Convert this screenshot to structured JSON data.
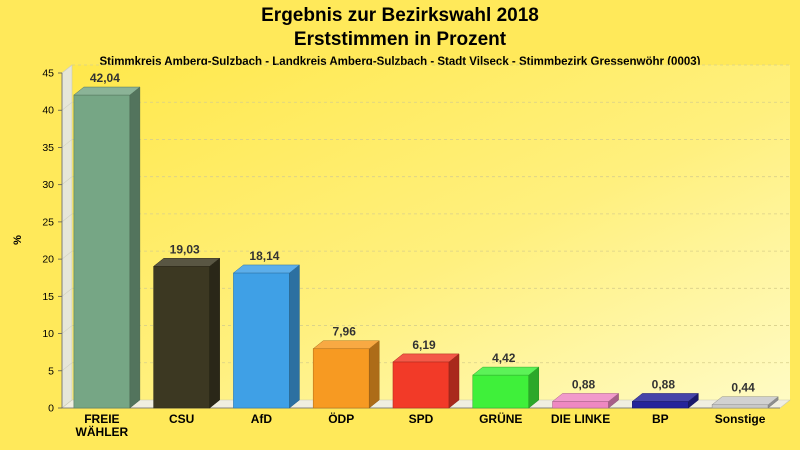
{
  "chart_data": {
    "type": "bar",
    "title": "Ergebnis zur Bezirkswahl 2018",
    "title_line2": "Erststimmen in Prozent",
    "subtitle": "Stimmkreis Amberg-Sulzbach - Landkreis Amberg-Sulzbach - Stadt Vilseck - Stimmbezirk Gressenwöhr (0003)",
    "ylabel": "%",
    "ylim": [
      0,
      45
    ],
    "yticks": [
      0,
      5,
      10,
      15,
      20,
      25,
      30,
      35,
      40,
      45
    ],
    "grid": true,
    "legend": "none",
    "categories": [
      "FREIE WÄHLER",
      "CSU",
      "AfD",
      "ÖDP",
      "SPD",
      "GRÜNE",
      "DIE LINKE",
      "BP",
      "Sonstige"
    ],
    "category_lines": [
      [
        "FREIE",
        "WÄHLER"
      ],
      [
        "CSU"
      ],
      [
        "AfD"
      ],
      [
        "ÖDP"
      ],
      [
        "SPD"
      ],
      [
        "GRÜNE"
      ],
      [
        "DIE LINKE"
      ],
      [
        "BP"
      ],
      [
        "Sonstige"
      ]
    ],
    "values": [
      42.04,
      19.03,
      18.14,
      7.96,
      6.19,
      4.42,
      0.88,
      0.88,
      0.44
    ],
    "value_labels": [
      "42,04",
      "19,03",
      "18,14",
      "7,96",
      "6,19",
      "4,42",
      "0,88",
      "0,88",
      "0,44"
    ],
    "colors": [
      "#76a685",
      "#3c3822",
      "#3fa0e6",
      "#f79a22",
      "#f23a28",
      "#3ff03a",
      "#ee88c2",
      "#25239a",
      "#c9c9c9"
    ]
  }
}
